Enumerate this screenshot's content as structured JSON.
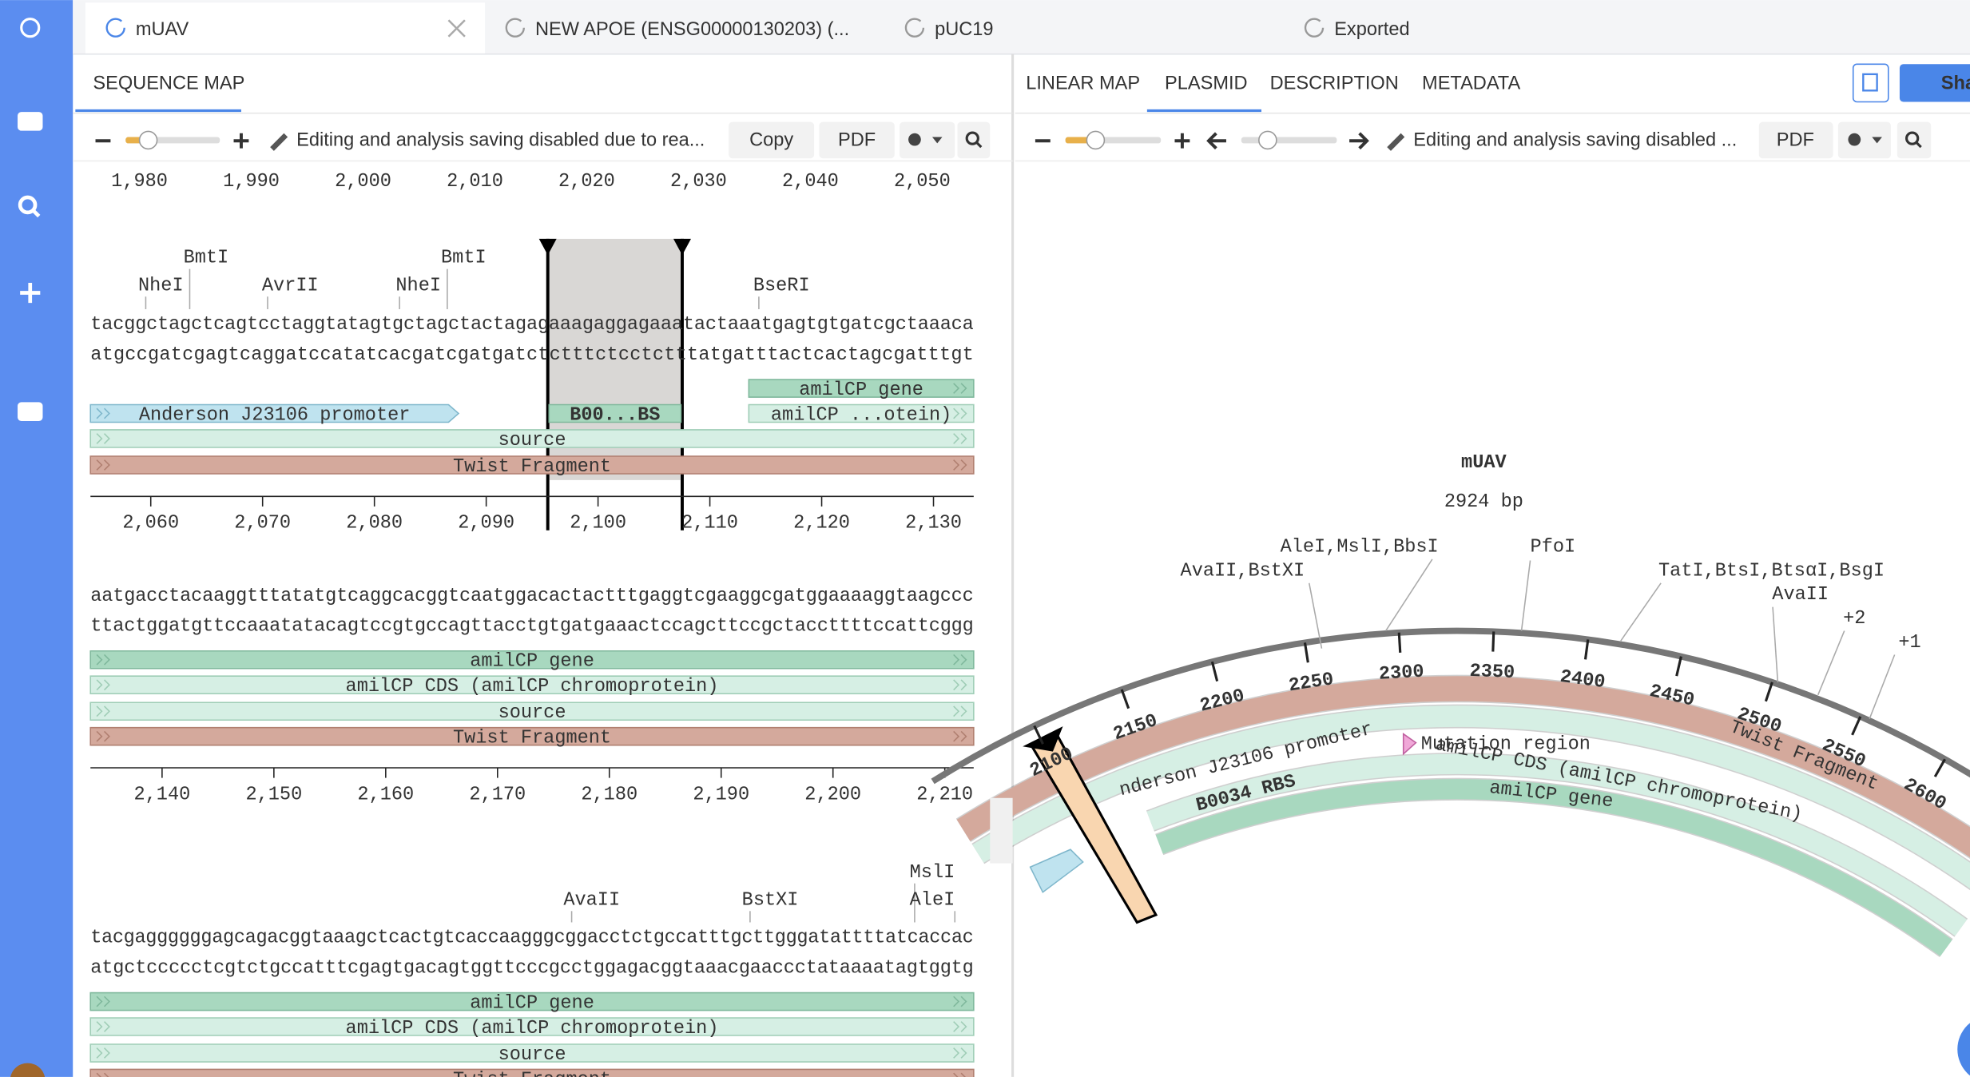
{
  "tabs": [
    "mUAV",
    "NEW APOE (ENSG00000130203) (...",
    "pUC19",
    "Exported"
  ],
  "sequence_map": {
    "tab": "SEQUENCE MAP",
    "notice": "Editing and analysis saving disabled due to rea...",
    "buttons": [
      "Copy",
      "PDF"
    ],
    "ruler_top": [
      "1,980",
      "1,990",
      "2,000",
      "2,010",
      "2,020",
      "2,030",
      "2,040",
      "2,050"
    ],
    "rows": [
      {
        "enzymes": [
          "BmtI",
          "NheI",
          "AvrII",
          "NheI",
          "BmtI",
          "BseRI"
        ],
        "top": "tacggctagctcagtcctaggtatagtgctagctactagagaaagaggagaaatactaaatgagtgtgatcgctaaaca",
        "bottom": "atgccgatcgagtcaggatccatatcacgatcgatgatctctttctcctctttatgatttactcactagcgatttgt",
        "features": [
          "amilCP gene",
          "Anderson J23106 promoter",
          "B00...BS",
          "amilCP ...otein)",
          "source",
          "Twist Fragment"
        ],
        "ruler": [
          "2,060",
          "2,070",
          "2,080",
          "2,090",
          "2,100",
          "2,110",
          "2,120",
          "2,130"
        ]
      },
      {
        "enzymes": [],
        "top": "aatgacctacaaggtttatatgtcaggcacggtcaatggacactactttgaggtcgaaggcgatggaaaaggtaagccc",
        "bottom": "ttactggatgttccaaatatacagtccgtgccagttacctgtgatgaaactccagcttccgctaccttttccattcggg",
        "features": [
          "amilCP gene",
          "amilCP CDS (amilCP chromoprotein)",
          "source",
          "Twist Fragment"
        ],
        "ruler": [
          "2,140",
          "2,150",
          "2,160",
          "2,170",
          "2,180",
          "2,190",
          "2,200",
          "2,210"
        ]
      },
      {
        "enzymes": [
          "AvaII",
          "BstXI",
          "MslI",
          "AleI"
        ],
        "top": "tacgaggggggagcagacggtaaagctcactgtcaccaagggcggacctctgccatttgcttgggatattttatcaccac",
        "bottom": "atgctccccctcgtctgccatttcgagtgacagtggttcccgcctggagacggtaaacgaaccctataaaatagtggtg",
        "features": [
          "amilCP gene",
          "amilCP CDS (amilCP chromoprotein)",
          "source",
          "Twist Fragment"
        ],
        "ruler": []
      }
    ]
  },
  "plasmid_panel": {
    "tabs": [
      "LINEAR MAP",
      "PLASMID",
      "DESCRIPTION",
      "METADATA"
    ],
    "share": "Share",
    "notice": "Editing and analysis saving disabled ...",
    "pdf": "PDF",
    "name": "mUAV",
    "length": "2924 bp",
    "enzymes": [
      "AleI,MslI,BbsI",
      "AvaII,BstXI",
      "PfoI",
      "TatI,BtsI,BtsαI,BsgI",
      "AvaII",
      "+2",
      "+1"
    ],
    "ticks": [
      2100,
      2150,
      2200,
      2250,
      2300,
      2350,
      2400,
      2450,
      2500,
      2550,
      2600
    ],
    "features": [
      "Twist Fragment",
      "Mutation region",
      "amilCP CDS (amilCP chromoprotein)",
      "amilCP gene",
      "nderson J23106 promoter",
      "B0034 RBS"
    ]
  }
}
